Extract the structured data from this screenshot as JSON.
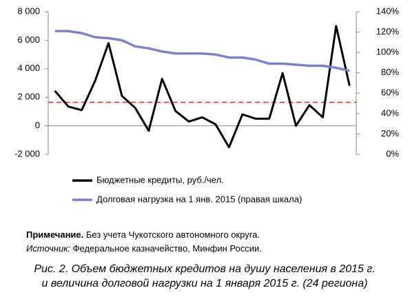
{
  "chart_data": {
    "type": "line",
    "categories": [
      null,
      null,
      null,
      null,
      null,
      null,
      null,
      null,
      null,
      null,
      null,
      null,
      null,
      null,
      null,
      null,
      null,
      null,
      null,
      null,
      null,
      null,
      null
    ],
    "series": [
      {
        "name": "Бюджетные кредиты,  руб./чел.",
        "color": "#000000",
        "values": [
          2450,
          1350,
          1100,
          3150,
          5800,
          2100,
          1250,
          -350,
          3300,
          1050,
          300,
          600,
          100,
          -1500,
          800,
          500,
          500,
          3700,
          0,
          1450,
          600,
          7000,
          2800
        ]
      },
      {
        "name": "Долговая нагрузка на 1 янв. 2015 (правая шкала)",
        "color": "#7b83c5",
        "axis": "y2",
        "values": [
          121,
          121,
          119,
          115,
          114,
          112,
          106,
          104,
          101,
          99,
          99,
          99,
          98,
          95,
          95,
          93,
          89,
          89,
          88,
          87,
          87,
          85,
          82
        ]
      }
    ],
    "reference_line": {
      "value": 1650,
      "color": "#d9261c"
    },
    "ylim": [
      -2000,
      8000
    ],
    "yticks": [
      {
        "value": -2000,
        "label": "-2 000"
      },
      0,
      {
        "value": 2000,
        "label": "2 000"
      },
      {
        "value": 4000,
        "label": "4 000"
      },
      {
        "value": 6000,
        "label": "6 000"
      },
      {
        "value": 8000,
        "label": "8 000"
      }
    ],
    "y2lim": [
      0,
      140
    ],
    "y2ticks": [
      {
        "value": 0,
        "label": "0%"
      },
      {
        "value": 20,
        "label": "20%"
      },
      {
        "value": 40,
        "label": "40%"
      },
      {
        "value": 60,
        "label": "60%"
      },
      {
        "value": 80,
        "label": "80%"
      },
      {
        "value": 100,
        "label": "100%"
      },
      {
        "value": 120,
        "label": "120%"
      },
      {
        "value": 140,
        "label": "140%"
      }
    ],
    "legend": "bottom",
    "note": {
      "label": "Примечание.",
      "text": " Без учета Чукотского автономного округа."
    },
    "source": {
      "label": "Источник:",
      "text": " Федеральное казначейство, Минфин России."
    },
    "caption": [
      "Рис. 2. Объем бюджетных кредитов на душу населения в 2015 г.",
      "и величина долговой нагрузки на 1 января 2015 г. (24 региона)"
    ]
  }
}
